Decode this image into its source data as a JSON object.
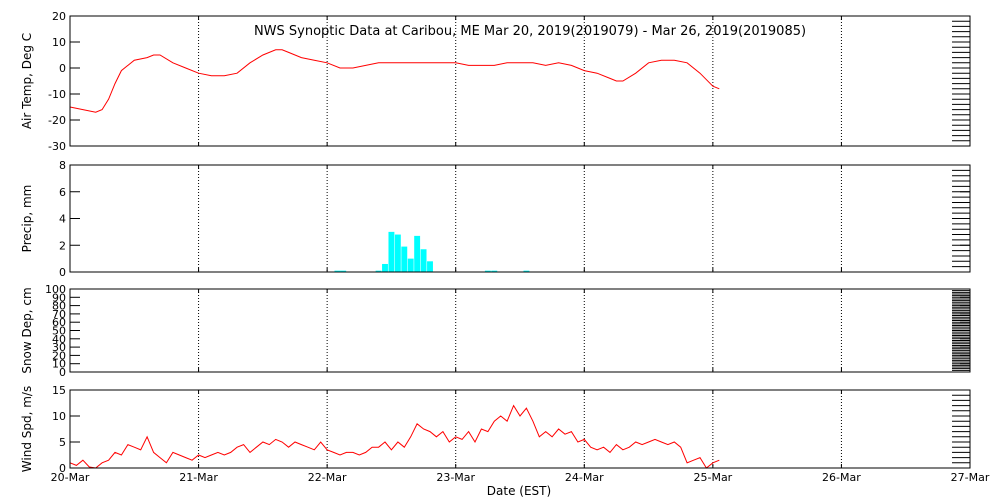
{
  "title": "NWS Synoptic Data at Caribou, ME   Mar 20, 2019(2019079) - Mar 26, 2019(2019085)",
  "x_axis": {
    "label": "Date (EST)",
    "ticks": [
      "20-Mar",
      "21-Mar",
      "22-Mar",
      "23-Mar",
      "24-Mar",
      "25-Mar",
      "26-Mar",
      "27-Mar"
    ]
  },
  "colors": {
    "line": "#ff0000",
    "bars": "#00ffff",
    "axes": "#000000",
    "grid": "#000000"
  },
  "chart_data": [
    {
      "type": "line",
      "ylabel": "Air Temp, Deg C",
      "ylim": [
        -30,
        20
      ],
      "yticks": [
        -30,
        -20,
        -10,
        0,
        10,
        20
      ],
      "series": [
        {
          "x": [
            0,
            0.1,
            0.2,
            0.25,
            0.3,
            0.35,
            0.4,
            0.5,
            0.6,
            0.65,
            0.7,
            0.8,
            0.9,
            1.0,
            1.1,
            1.2,
            1.3,
            1.4,
            1.5,
            1.6,
            1.65,
            1.7,
            1.8,
            1.9,
            2.0,
            2.1,
            2.2,
            2.3,
            2.4,
            2.5,
            2.6,
            2.7,
            2.8,
            2.9,
            3.0,
            3.1,
            3.2,
            3.3,
            3.4,
            3.5,
            3.6,
            3.7,
            3.8,
            3.9,
            4.0,
            4.1,
            4.2,
            4.25,
            4.3,
            4.4,
            4.5,
            4.6,
            4.7,
            4.8,
            4.9,
            5.0,
            5.05
          ],
          "values": [
            -15,
            -16,
            -17,
            -16,
            -12,
            -6,
            -1,
            3,
            4,
            5,
            5,
            2,
            0,
            -2,
            -3,
            -3,
            -2,
            2,
            5,
            7,
            7,
            6,
            4,
            3,
            2,
            0,
            0,
            1,
            2,
            2,
            2,
            2,
            2,
            2,
            2,
            1,
            1,
            1,
            2,
            2,
            2,
            1,
            2,
            1,
            -1,
            -2,
            -4,
            -5,
            -5,
            -2,
            2,
            3,
            3,
            2,
            -2,
            -7,
            -8
          ]
        }
      ]
    },
    {
      "type": "bar",
      "ylabel": "Precip, mm",
      "ylim": [
        0,
        8
      ],
      "yticks": [
        0,
        2,
        4,
        6,
        8
      ],
      "series": [
        {
          "x": [
            2.08,
            2.125,
            2.4,
            2.45,
            2.5,
            2.55,
            2.6,
            2.65,
            2.7,
            2.75,
            2.8,
            3.25,
            3.3,
            3.55
          ],
          "values": [
            0.1,
            0.1,
            0.1,
            0.6,
            3.0,
            2.8,
            1.9,
            1.0,
            2.7,
            1.7,
            0.8,
            0.1,
            0.1,
            0.1
          ]
        }
      ]
    },
    {
      "type": "line",
      "ylabel": "Snow Dep, cm",
      "ylim": [
        0,
        100
      ],
      "yticks": [
        0,
        10,
        20,
        30,
        40,
        50,
        60,
        70,
        80,
        90,
        100
      ],
      "series": [
        {
          "x": [],
          "values": []
        }
      ]
    },
    {
      "type": "line",
      "ylabel": "Wind Spd, m/s",
      "ylim": [
        0,
        15
      ],
      "yticks": [
        0,
        5,
        10,
        15
      ],
      "series": [
        {
          "x": [
            0,
            0.05,
            0.1,
            0.15,
            0.2,
            0.25,
            0.3,
            0.35,
            0.4,
            0.45,
            0.5,
            0.55,
            0.6,
            0.65,
            0.7,
            0.75,
            0.8,
            0.85,
            0.9,
            0.95,
            1.0,
            1.05,
            1.1,
            1.15,
            1.2,
            1.25,
            1.3,
            1.35,
            1.4,
            1.45,
            1.5,
            1.55,
            1.6,
            1.65,
            1.7,
            1.75,
            1.8,
            1.85,
            1.9,
            1.95,
            2.0,
            2.05,
            2.1,
            2.15,
            2.2,
            2.25,
            2.3,
            2.35,
            2.4,
            2.45,
            2.5,
            2.55,
            2.6,
            2.65,
            2.7,
            2.75,
            2.8,
            2.85,
            2.9,
            2.95,
            3.0,
            3.05,
            3.1,
            3.15,
            3.2,
            3.25,
            3.3,
            3.35,
            3.4,
            3.45,
            3.5,
            3.55,
            3.6,
            3.65,
            3.7,
            3.75,
            3.8,
            3.85,
            3.9,
            3.95,
            4.0,
            4.05,
            4.1,
            4.15,
            4.2,
            4.25,
            4.3,
            4.35,
            4.4,
            4.45,
            4.5,
            4.55,
            4.6,
            4.65,
            4.7,
            4.75,
            4.8,
            4.85,
            4.9,
            4.95,
            5.0,
            5.05
          ],
          "values": [
            1,
            0.5,
            1.5,
            0.2,
            0,
            1,
            1.5,
            3,
            2.5,
            4.5,
            4,
            3.5,
            6,
            3,
            2,
            1,
            3,
            2.5,
            2,
            1.5,
            2.5,
            2,
            2.5,
            3,
            2.5,
            3,
            4,
            4.5,
            3,
            4,
            5,
            4.5,
            5.5,
            5,
            4,
            5,
            4.5,
            4,
            3.5,
            5,
            3.5,
            3,
            2.5,
            3,
            3,
            2.5,
            3,
            4,
            4,
            5,
            3.5,
            5,
            4,
            6,
            8.5,
            7.5,
            7,
            6,
            7,
            5,
            6,
            5.5,
            7,
            5,
            7.5,
            7,
            9,
            10,
            9,
            12,
            10,
            11.5,
            9,
            6,
            7,
            6,
            7.5,
            6.5,
            7,
            5,
            5.5,
            4,
            3.5,
            4,
            3,
            4.5,
            3.5,
            4,
            5,
            4.5,
            5,
            5.5,
            5,
            4.5,
            5,
            4,
            1,
            1.5,
            2,
            0,
            1,
            1.5
          ]
        }
      ]
    }
  ]
}
